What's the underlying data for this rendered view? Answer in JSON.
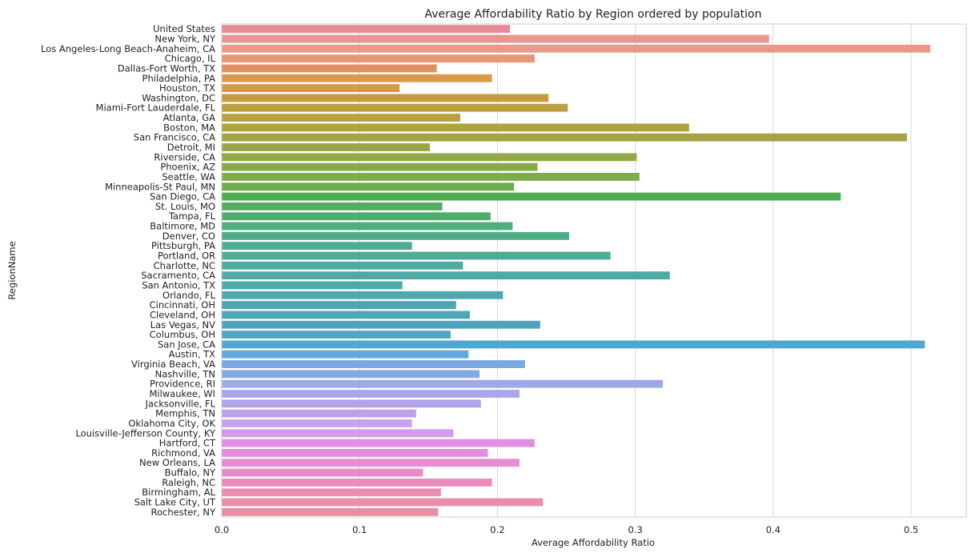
{
  "chart_data": {
    "type": "bar",
    "orientation": "horizontal",
    "title": "Average Affordability Ratio by Region ordered by population",
    "xlabel": "Average Affordability Ratio",
    "ylabel": "RegionName",
    "xlim": [
      0,
      0.54
    ],
    "xticks": [
      "0.0",
      "0.1",
      "0.2",
      "0.3",
      "0.4",
      "0.5"
    ],
    "grid": "vertical",
    "categories": [
      "United States",
      "New York, NY",
      "Los Angeles-Long Beach-Anaheim, CA",
      "Chicago, IL",
      "Dallas-Fort Worth, TX",
      "Philadelphia, PA",
      "Houston, TX",
      "Washington, DC",
      "Miami-Fort Lauderdale, FL",
      "Atlanta, GA",
      "Boston, MA",
      "San Francisco, CA",
      "Detroit, MI",
      "Riverside, CA",
      "Phoenix, AZ",
      "Seattle, WA",
      "Minneapolis-St Paul, MN",
      "San Diego, CA",
      "St. Louis, MO",
      "Tampa, FL",
      "Baltimore, MD",
      "Denver, CO",
      "Pittsburgh, PA",
      "Portland, OR",
      "Charlotte, NC",
      "Sacramento, CA",
      "San Antonio, TX",
      "Orlando, FL",
      "Cincinnati, OH",
      "Cleveland, OH",
      "Las Vegas, NV",
      "Columbus, OH",
      "San Jose, CA",
      "Austin, TX",
      "Virginia Beach, VA",
      "Nashville, TN",
      "Providence, RI",
      "Milwaukee, WI",
      "Jacksonville, FL",
      "Memphis, TN",
      "Oklahoma City, OK",
      "Louisville-Jefferson County, KY",
      "Hartford, CT",
      "Richmond, VA",
      "New Orleans, LA",
      "Buffalo, NY",
      "Raleigh, NC",
      "Birmingham, AL",
      "Salt Lake City, UT",
      "Rochester, NY"
    ],
    "values": [
      0.209,
      0.397,
      0.514,
      0.227,
      0.156,
      0.196,
      0.129,
      0.237,
      0.251,
      0.173,
      0.339,
      0.497,
      0.151,
      0.301,
      0.229,
      0.303,
      0.212,
      0.449,
      0.16,
      0.195,
      0.211,
      0.252,
      0.138,
      0.282,
      0.175,
      0.325,
      0.131,
      0.204,
      0.17,
      0.18,
      0.231,
      0.166,
      0.51,
      0.179,
      0.22,
      0.187,
      0.32,
      0.216,
      0.188,
      0.141,
      0.138,
      0.168,
      0.227,
      0.193,
      0.216,
      0.146,
      0.196,
      0.159,
      0.233,
      0.157
    ],
    "colors": [
      "#e88a93",
      "#e9968f",
      "#ea988a",
      "#e99674",
      "#e1915d",
      "#d99a4c",
      "#d19a43",
      "#c89a3e",
      "#bd9e3d",
      "#b6a23f",
      "#ada440",
      "#a5a345",
      "#9ba547",
      "#92a747",
      "#88a949",
      "#7fab4b",
      "#6eaa4e",
      "#4cae4f",
      "#52ad5f",
      "#4fae6c",
      "#4fae79",
      "#4ead86",
      "#4fad8f",
      "#4dac96",
      "#4eab9f",
      "#4ea9a5",
      "#4da9ac",
      "#4fa8b0",
      "#4ea6b3",
      "#4fa6b6",
      "#4ea5bb",
      "#50a6c1",
      "#4fa8d1",
      "#60a8e0",
      "#7aa8e3",
      "#86a7e6",
      "#9da9e9",
      "#a9a7ec",
      "#b2a3ec",
      "#bba0ec",
      "#c8a1ec",
      "#d59ae9",
      "#e28ee3",
      "#e28ddb",
      "#e58cd2",
      "#e88bc9",
      "#e98bbd",
      "#ea8db3",
      "#e98fab",
      "#e88ea4"
    ]
  }
}
